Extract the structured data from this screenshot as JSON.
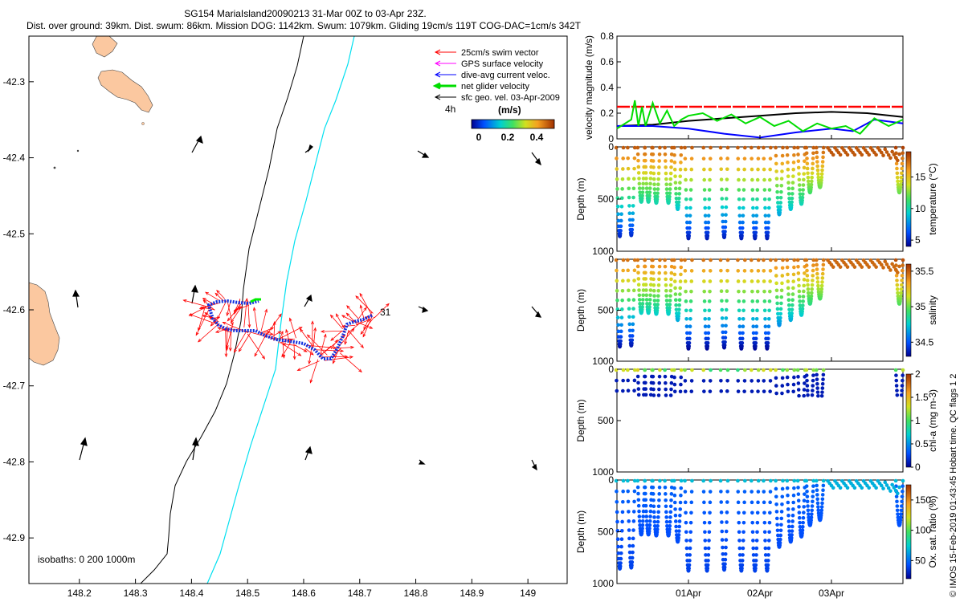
{
  "header": {
    "line1": "SG154 MariaIsland20090213 31-Mar 00Z to 03-Apr 23Z.",
    "line2": "Dist. over ground: 39km. Dist. swum: 86km. Mission DOG: 1142km. Swum: 1079km. Gliding 19cm/s 119T COG-DAC=1cm/s 342T"
  },
  "map": {
    "x_ticks": [
      "148.2",
      "148.3",
      "148.4",
      "148.5",
      "148.6",
      "148.7",
      "148.8",
      "148.9",
      "149"
    ],
    "y_ticks": [
      "-42.3",
      "-42.4",
      "-42.5",
      "-42.6",
      "-42.7",
      "-42.8",
      "-42.9"
    ],
    "xlim": [
      148.11,
      149.07
    ],
    "ylim": [
      -42.96,
      -42.24
    ],
    "isobath_label": "isobaths: 0   200  1000m",
    "day_label": "31",
    "vector_time_label": "4h",
    "colorbar_unit": "(m/s)",
    "colorbar_ticks": [
      "0",
      "0.2",
      "0.4"
    ],
    "colors": {
      "land": "#fbc8a0",
      "isobath_200": "#000000",
      "isobath_1000": "#00e0f0",
      "swim": "#ff0000",
      "track": "#0000cc",
      "glider": "#00ee00"
    },
    "legend": [
      {
        "label": "25cm/s swim vector",
        "color": "#ff0000"
      },
      {
        "label": "GPS surface velocity",
        "color": "#ff00ff"
      },
      {
        "label": "dive-avg current veloc.",
        "color": "#0000ff"
      },
      {
        "label": "net glider velocity",
        "color": "#00dd00"
      },
      {
        "label": "sfc geo. vel. 03-Apr-2009",
        "color": "#000000"
      }
    ]
  },
  "chart_data": [
    {
      "type": "line",
      "ylabel": "velocity magnitude (m/s)",
      "ylim": [
        0,
        0.8
      ],
      "y_ticks": [
        "0",
        "0.2",
        "0.4",
        "0.6",
        "0.8"
      ],
      "series": [
        {
          "color": "#ff0000",
          "x": [
            0,
            4
          ],
          "y": [
            0.25,
            0.25
          ]
        },
        {
          "color": "#000000",
          "x": [
            0,
            0.5,
            1,
            1.5,
            2,
            2.5,
            3,
            3.5,
            4
          ],
          "y": [
            0.1,
            0.11,
            0.14,
            0.16,
            0.18,
            0.2,
            0.21,
            0.2,
            0.17
          ]
        },
        {
          "color": "#0000ff",
          "x": [
            0,
            0.5,
            1,
            1.5,
            2,
            2.5,
            3,
            3.3,
            3.6,
            4
          ],
          "y": [
            0.1,
            0.1,
            0.08,
            0.04,
            0.01,
            0.05,
            0.08,
            0.06,
            0.15,
            0.12
          ]
        },
        {
          "color": "#00dd00",
          "x": [
            0,
            0.2,
            0.25,
            0.3,
            0.35,
            0.4,
            0.5,
            0.6,
            0.7,
            0.8,
            0.9,
            1,
            1.2,
            1.4,
            1.6,
            1.8,
            2,
            2.2,
            2.4,
            2.6,
            2.8,
            3,
            3.2,
            3.4,
            3.6,
            3.8,
            4
          ],
          "y": [
            0.08,
            0.15,
            0.3,
            0.1,
            0.25,
            0.1,
            0.28,
            0.12,
            0.22,
            0.1,
            0.15,
            0.18,
            0.2,
            0.14,
            0.19,
            0.12,
            0.17,
            0.1,
            0.14,
            0.06,
            0.12,
            0.08,
            0.1,
            0.04,
            0.16,
            0.1,
            0.15
          ]
        }
      ]
    },
    {
      "type": "scatter",
      "ylabel": "Depth (m)",
      "ylim": [
        1000,
        0
      ],
      "y_ticks": [
        "0",
        "500",
        "1000"
      ],
      "colorbar_label": "temperature (°C)",
      "colorbar_ticks": [
        "5",
        "10",
        "15"
      ],
      "clim": [
        4,
        19
      ],
      "dives": [
        {
          "x": 0.04,
          "max": 850,
          "top": 18
        },
        {
          "x": 0.2,
          "max": 840,
          "top": 18
        },
        {
          "x": 0.34,
          "max": 520,
          "top": 18
        },
        {
          "x": 0.44,
          "max": 520,
          "top": 18
        },
        {
          "x": 0.55,
          "max": 530,
          "top": 18
        },
        {
          "x": 0.72,
          "max": 530,
          "top": 18
        },
        {
          "x": 0.85,
          "max": 590,
          "top": 18
        },
        {
          "x": 1.0,
          "max": 870,
          "top": 18
        },
        {
          "x": 1.26,
          "max": 870,
          "top": 18
        },
        {
          "x": 1.5,
          "max": 860,
          "top": 18
        },
        {
          "x": 1.74,
          "max": 870,
          "top": 18
        },
        {
          "x": 1.93,
          "max": 870,
          "top": 18
        },
        {
          "x": 2.1,
          "max": 870,
          "top": 18
        },
        {
          "x": 2.27,
          "max": 640,
          "top": 18
        },
        {
          "x": 2.43,
          "max": 590,
          "top": 18
        },
        {
          "x": 2.58,
          "max": 540,
          "top": 18
        },
        {
          "x": 2.7,
          "max": 430,
          "top": 18
        },
        {
          "x": 2.84,
          "max": 380,
          "top": 18
        },
        {
          "x": 3.95,
          "max": 430,
          "top": 18
        }
      ]
    },
    {
      "type": "scatter",
      "ylabel": "Depth (m)",
      "ylim": [
        1000,
        0
      ],
      "y_ticks": [
        "0",
        "500",
        "1000"
      ],
      "colorbar_label": "salinity",
      "colorbar_ticks": [
        "34.5",
        "35",
        "35.5"
      ],
      "clim": [
        34.3,
        35.6
      ]
    },
    {
      "type": "scatter",
      "ylabel": "Depth (m)",
      "ylim": [
        1000,
        0
      ],
      "y_ticks": [
        "0",
        "500",
        "1000"
      ],
      "colorbar_label": "chl-a (mg m-3)",
      "colorbar_ticks": [
        "0",
        "0.5",
        "1",
        "1.5",
        "2"
      ],
      "clim": [
        0,
        2
      ]
    },
    {
      "type": "scatter",
      "ylabel": "Depth (m)",
      "ylim": [
        1000,
        0
      ],
      "y_ticks": [
        "0",
        "500",
        "1000"
      ],
      "colorbar_label": "Ox. sat. ratio (%)",
      "colorbar_ticks": [
        "50",
        "100",
        "150"
      ],
      "clim": [
        20,
        175
      ],
      "x_ticks": [
        "01Apr",
        "02Apr",
        "03Apr"
      ]
    }
  ],
  "footer": {
    "side_note": "© IMOS 15-Feb-2019 01:43:45 Hobart time. QC flags 1  2"
  }
}
